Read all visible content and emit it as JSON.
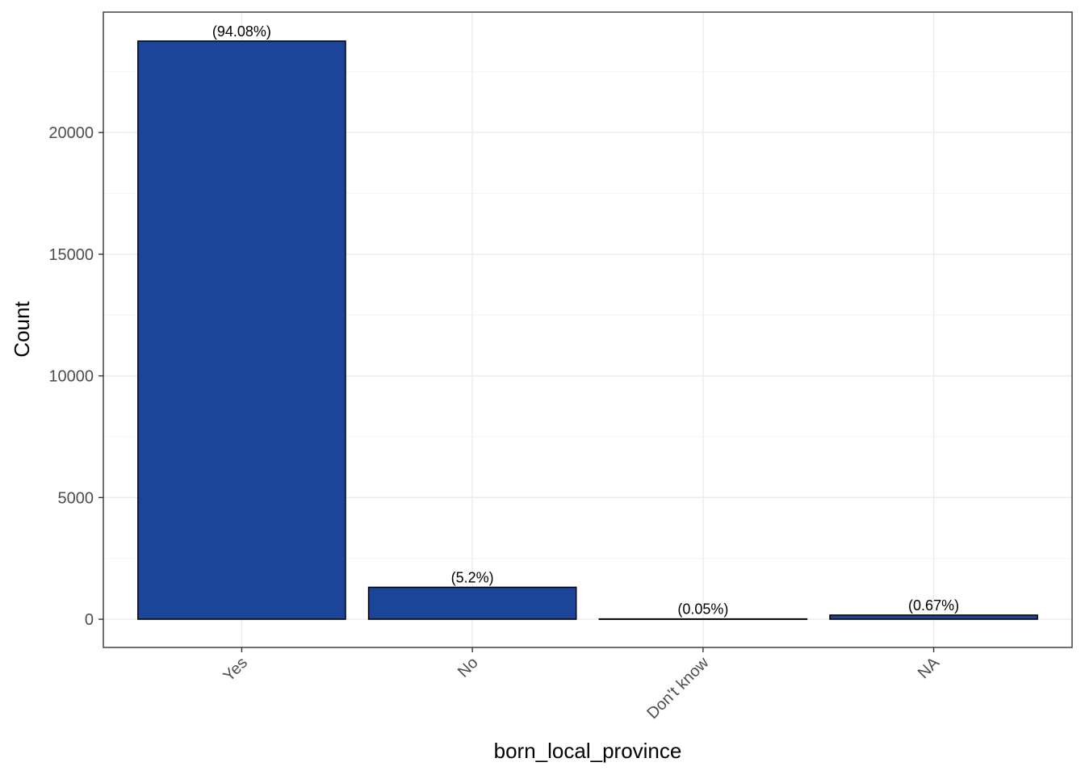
{
  "chart_data": {
    "type": "bar",
    "xlabel": "born_local_province",
    "ylabel": "Count",
    "categories": [
      "Yes",
      "No",
      "Don't know",
      "NA"
    ],
    "values": [
      23760,
      1313,
      13,
      169
    ],
    "data_labels": [
      "(94.08%)",
      "(5.2%)",
      "(0.05%)",
      "(0.67%)"
    ],
    "y_ticks": [
      0,
      5000,
      10000,
      15000,
      20000
    ],
    "y_tick_labels": [
      "0",
      "5000",
      "10000",
      "15000",
      "20000"
    ],
    "ylim": [
      -1160,
      24950
    ],
    "grid": true,
    "colors": {
      "bar_fill": "#1a4598",
      "bar_stroke": "#000000",
      "grid_major": "#ebebeb",
      "grid_minor": "#f4f4f4",
      "panel_border": "#333333"
    }
  }
}
